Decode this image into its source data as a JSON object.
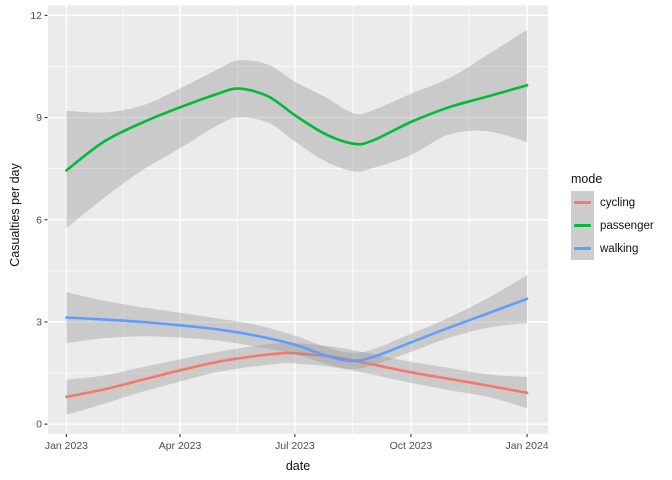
{
  "chart": {
    "y_axis": {
      "title": "Casualties per day",
      "ticks": [
        0,
        3,
        6,
        9,
        12
      ],
      "tick_labels": [
        "0",
        "3",
        "6",
        "9",
        "12"
      ],
      "minor": [
        1.5,
        4.5,
        7.5,
        10.5
      ],
      "range": [
        -0.29,
        12.29
      ]
    },
    "x_axis": {
      "title": "date",
      "tick_days": [
        0,
        90,
        181,
        273,
        365
      ],
      "tick_labels": [
        "Jan 2023",
        "Apr 2023",
        "Jul 2023",
        "Oct 2023",
        "Jan 2024"
      ],
      "minor_days": [
        45,
        135.5,
        227,
        319
      ],
      "range": [
        -14.6,
        381.6
      ]
    },
    "legend": {
      "title": "mode",
      "items": [
        {
          "label": "cycling",
          "color": "#F8766D"
        },
        {
          "label": "passenger",
          "color": "#00BA38"
        },
        {
          "label": "walking",
          "color": "#619CFF"
        }
      ]
    },
    "colors": {
      "panel": "#EBEBEB",
      "grid": "#FFFFFF",
      "ribbon": "#999999",
      "ribbon_opacity": 0.4,
      "tick_text": "#4D4D4D",
      "tick_mark": "#333333"
    }
  },
  "chart_data": {
    "type": "line",
    "title": "",
    "xlabel": "date",
    "ylabel": "Casualties per day",
    "x_unit": "days since 2023-01-01",
    "ylim": [
      0,
      12
    ],
    "smoothed": true,
    "confidence_band": true,
    "legend_title": "mode",
    "legend_position": "right",
    "grid": true,
    "series": [
      {
        "name": "cycling",
        "color": "#F8766D",
        "points": [
          [
            0,
            0.8
          ],
          [
            30,
            1.02
          ],
          [
            60,
            1.3
          ],
          [
            90,
            1.58
          ],
          [
            120,
            1.83
          ],
          [
            150,
            2.0
          ],
          [
            170,
            2.08
          ],
          [
            181,
            2.08
          ],
          [
            212,
            1.97
          ],
          [
            243,
            1.75
          ],
          [
            273,
            1.52
          ],
          [
            303,
            1.33
          ],
          [
            334,
            1.13
          ],
          [
            365,
            0.92
          ]
        ],
        "ci_upper": [
          [
            0,
            1.3
          ],
          [
            30,
            1.43
          ],
          [
            60,
            1.67
          ],
          [
            90,
            1.9
          ],
          [
            120,
            2.12
          ],
          [
            150,
            2.3
          ],
          [
            170,
            2.38
          ],
          [
            181,
            2.38
          ],
          [
            212,
            2.27
          ],
          [
            243,
            2.05
          ],
          [
            273,
            1.83
          ],
          [
            303,
            1.65
          ],
          [
            334,
            1.46
          ],
          [
            365,
            1.38
          ]
        ],
        "ci_lower": [
          [
            0,
            0.28
          ],
          [
            30,
            0.6
          ],
          [
            60,
            0.95
          ],
          [
            90,
            1.25
          ],
          [
            120,
            1.53
          ],
          [
            150,
            1.7
          ],
          [
            170,
            1.78
          ],
          [
            181,
            1.78
          ],
          [
            212,
            1.67
          ],
          [
            243,
            1.45
          ],
          [
            273,
            1.21
          ],
          [
            303,
            1.0
          ],
          [
            334,
            0.8
          ],
          [
            365,
            0.47
          ]
        ]
      },
      {
        "name": "passenger",
        "color": "#00BA38",
        "points": [
          [
            0,
            7.45
          ],
          [
            30,
            8.3
          ],
          [
            60,
            8.85
          ],
          [
            90,
            9.3
          ],
          [
            120,
            9.7
          ],
          [
            137,
            9.85
          ],
          [
            160,
            9.62
          ],
          [
            181,
            9.07
          ],
          [
            205,
            8.52
          ],
          [
            228,
            8.23
          ],
          [
            243,
            8.33
          ],
          [
            273,
            8.87
          ],
          [
            303,
            9.3
          ],
          [
            334,
            9.62
          ],
          [
            365,
            9.95
          ]
        ],
        "ci_upper": [
          [
            0,
            9.2
          ],
          [
            30,
            9.15
          ],
          [
            60,
            9.35
          ],
          [
            90,
            9.85
          ],
          [
            120,
            10.42
          ],
          [
            137,
            10.68
          ],
          [
            160,
            10.55
          ],
          [
            181,
            10.05
          ],
          [
            205,
            9.6
          ],
          [
            228,
            9.12
          ],
          [
            243,
            9.22
          ],
          [
            273,
            9.7
          ],
          [
            303,
            10.15
          ],
          [
            334,
            10.85
          ],
          [
            365,
            11.58
          ]
        ],
        "ci_lower": [
          [
            0,
            5.75
          ],
          [
            30,
            6.65
          ],
          [
            60,
            7.45
          ],
          [
            90,
            8.1
          ],
          [
            120,
            8.78
          ],
          [
            137,
            9.0
          ],
          [
            160,
            8.85
          ],
          [
            181,
            8.3
          ],
          [
            205,
            7.72
          ],
          [
            228,
            7.42
          ],
          [
            243,
            7.52
          ],
          [
            273,
            7.9
          ],
          [
            303,
            8.5
          ],
          [
            334,
            8.6
          ],
          [
            365,
            8.28
          ]
        ]
      },
      {
        "name": "walking",
        "color": "#619CFF",
        "points": [
          [
            0,
            3.13
          ],
          [
            30,
            3.07
          ],
          [
            60,
            3.0
          ],
          [
            90,
            2.9
          ],
          [
            120,
            2.78
          ],
          [
            150,
            2.6
          ],
          [
            181,
            2.33
          ],
          [
            205,
            2.02
          ],
          [
            225,
            1.86
          ],
          [
            243,
            1.97
          ],
          [
            273,
            2.4
          ],
          [
            303,
            2.83
          ],
          [
            334,
            3.25
          ],
          [
            365,
            3.68
          ]
        ],
        "ci_upper": [
          [
            0,
            3.87
          ],
          [
            30,
            3.62
          ],
          [
            60,
            3.43
          ],
          [
            90,
            3.27
          ],
          [
            120,
            3.1
          ],
          [
            150,
            2.92
          ],
          [
            181,
            2.6
          ],
          [
            205,
            2.27
          ],
          [
            225,
            2.1
          ],
          [
            243,
            2.2
          ],
          [
            273,
            2.65
          ],
          [
            303,
            3.12
          ],
          [
            334,
            3.7
          ],
          [
            365,
            4.37
          ]
        ],
        "ci_lower": [
          [
            0,
            2.38
          ],
          [
            30,
            2.52
          ],
          [
            60,
            2.58
          ],
          [
            90,
            2.54
          ],
          [
            120,
            2.45
          ],
          [
            150,
            2.28
          ],
          [
            181,
            2.05
          ],
          [
            205,
            1.77
          ],
          [
            225,
            1.62
          ],
          [
            243,
            1.73
          ],
          [
            273,
            2.12
          ],
          [
            303,
            2.53
          ],
          [
            334,
            2.83
          ],
          [
            365,
            2.97
          ]
        ]
      }
    ]
  }
}
